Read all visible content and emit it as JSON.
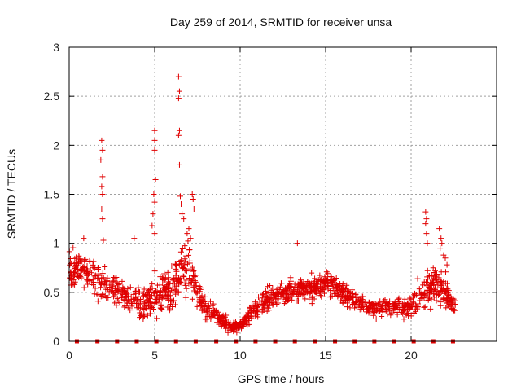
{
  "chart_data": {
    "type": "scatter",
    "title": "Day 259 of 2014, SRMTID for receiver unsa",
    "xlabel": "GPS time / hours",
    "ylabel": "SRMTID / TECUs",
    "xlim": [
      0,
      25
    ],
    "ylim": [
      0,
      3
    ],
    "grid": true,
    "marker": "+",
    "color": "#e00000",
    "x_ticks": [
      "0",
      "5",
      "10",
      "15",
      "20"
    ],
    "x_tick_values": [
      0,
      5,
      10,
      15,
      20
    ],
    "y_ticks": [
      "0",
      "0.5",
      "1",
      "1.5",
      "2",
      "2.5",
      "3"
    ],
    "y_tick_values": [
      0,
      0.5,
      1,
      1.5,
      2,
      2.5,
      3
    ],
    "baseline_markers_x": [
      0.45,
      1.65,
      2.8,
      3.95,
      5.1,
      6.25,
      7.4,
      8.6,
      9.75,
      10.9,
      12.05,
      13.2,
      14.4,
      15.55,
      16.7,
      17.85,
      19.0,
      20.15,
      21.3,
      22.45
    ],
    "series": [
      {
        "name": "SRMTID",
        "profile": [
          [
            0.0,
            0.72,
            0.25
          ],
          [
            0.5,
            0.75,
            0.25
          ],
          [
            1.0,
            0.7,
            0.22
          ],
          [
            1.5,
            0.65,
            0.25
          ],
          [
            2.0,
            0.55,
            0.22
          ],
          [
            2.5,
            0.55,
            0.2
          ],
          [
            3.0,
            0.5,
            0.18
          ],
          [
            3.5,
            0.45,
            0.2
          ],
          [
            4.0,
            0.4,
            0.2
          ],
          [
            4.5,
            0.4,
            0.2
          ],
          [
            5.0,
            0.45,
            0.25
          ],
          [
            5.5,
            0.55,
            0.25
          ],
          [
            6.0,
            0.5,
            0.25
          ],
          [
            6.5,
            0.7,
            0.35
          ],
          [
            7.0,
            0.75,
            0.35
          ],
          [
            7.5,
            0.5,
            0.2
          ],
          [
            8.0,
            0.3,
            0.12
          ],
          [
            8.5,
            0.3,
            0.12
          ],
          [
            9.0,
            0.2,
            0.08
          ],
          [
            9.5,
            0.15,
            0.06
          ],
          [
            10.0,
            0.15,
            0.06
          ],
          [
            10.5,
            0.25,
            0.1
          ],
          [
            11.0,
            0.35,
            0.15
          ],
          [
            11.5,
            0.4,
            0.15
          ],
          [
            12.0,
            0.45,
            0.15
          ],
          [
            12.5,
            0.5,
            0.15
          ],
          [
            13.0,
            0.5,
            0.15
          ],
          [
            13.5,
            0.55,
            0.15
          ],
          [
            14.0,
            0.55,
            0.15
          ],
          [
            14.5,
            0.55,
            0.15
          ],
          [
            15.0,
            0.6,
            0.15
          ],
          [
            15.5,
            0.55,
            0.15
          ],
          [
            16.0,
            0.5,
            0.15
          ],
          [
            16.5,
            0.45,
            0.15
          ],
          [
            17.0,
            0.4,
            0.12
          ],
          [
            17.5,
            0.35,
            0.12
          ],
          [
            18.0,
            0.35,
            0.12
          ],
          [
            18.5,
            0.35,
            0.12
          ],
          [
            19.0,
            0.35,
            0.12
          ],
          [
            19.5,
            0.35,
            0.12
          ],
          [
            20.0,
            0.35,
            0.15
          ],
          [
            20.5,
            0.45,
            0.2
          ],
          [
            21.0,
            0.55,
            0.25
          ],
          [
            21.5,
            0.55,
            0.25
          ],
          [
            22.0,
            0.5,
            0.2
          ],
          [
            22.5,
            0.35,
            0.12
          ]
        ],
        "spikes": [
          [
            1.9,
            2.05
          ],
          [
            1.95,
            1.95
          ],
          [
            1.85,
            1.85
          ],
          [
            1.95,
            1.68
          ],
          [
            1.9,
            1.58
          ],
          [
            1.95,
            1.5
          ],
          [
            1.9,
            1.35
          ],
          [
            1.95,
            1.25
          ],
          [
            2.0,
            1.03
          ],
          [
            5.0,
            2.15
          ],
          [
            5.0,
            2.05
          ],
          [
            5.0,
            1.95
          ],
          [
            5.05,
            1.65
          ],
          [
            4.95,
            1.5
          ],
          [
            5.0,
            1.42
          ],
          [
            4.9,
            1.3
          ],
          [
            4.85,
            1.18
          ],
          [
            5.0,
            1.1
          ],
          [
            6.4,
            2.7
          ],
          [
            6.45,
            2.55
          ],
          [
            6.4,
            2.48
          ],
          [
            6.45,
            2.15
          ],
          [
            6.4,
            2.1
          ],
          [
            6.45,
            1.8
          ],
          [
            6.5,
            1.48
          ],
          [
            6.55,
            1.4
          ],
          [
            6.6,
            1.3
          ],
          [
            6.7,
            1.25
          ],
          [
            7.2,
            1.5
          ],
          [
            7.25,
            1.45
          ],
          [
            7.3,
            1.35
          ],
          [
            7.0,
            1.15
          ],
          [
            6.9,
            1.1
          ],
          [
            7.1,
            1.05
          ],
          [
            13.35,
            1.0
          ],
          [
            3.8,
            1.05
          ],
          [
            0.85,
            1.05
          ],
          [
            20.85,
            1.32
          ],
          [
            20.9,
            1.25
          ],
          [
            20.85,
            1.2
          ],
          [
            20.9,
            1.1
          ],
          [
            20.95,
            1.0
          ],
          [
            21.65,
            1.15
          ],
          [
            21.75,
            1.05
          ],
          [
            21.8,
            1.0
          ],
          [
            21.7,
            0.95
          ],
          [
            21.9,
            0.88
          ],
          [
            22.0,
            0.85
          ],
          [
            22.1,
            0.78
          ]
        ],
        "x_range": [
          0.0,
          22.6
        ],
        "n": 1400
      }
    ]
  }
}
